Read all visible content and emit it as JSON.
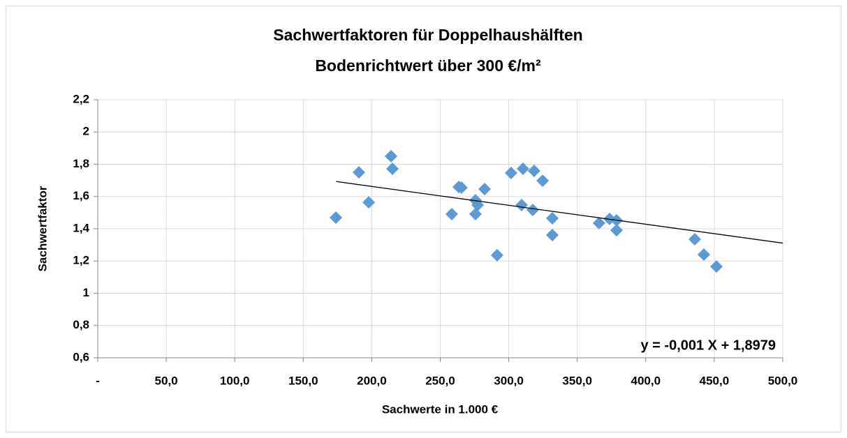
{
  "chart_data": {
    "type": "scatter",
    "title": [
      "Sachwertfaktoren für Doppelhaushälften",
      "Bodenrichtwert über 300 €/m²"
    ],
    "x_label": "Sachwerte in 1.000 €",
    "y_label": "Sachwertfaktor",
    "annotation": "y = -0,001 X + 1,8979",
    "series": [
      {
        "name": "Sachwertfaktor",
        "color": "#5b9bd5",
        "x": [
          173.8,
          190.6,
          197.8,
          214.1,
          215.1,
          258.4,
          263.5,
          265.5,
          275.7,
          277.3,
          275.7,
          282.4,
          291.5,
          301.7,
          310.4,
          309.4,
          318.5,
          317.5,
          324.7,
          331.8,
          331.8,
          365.9,
          373.6,
          378.7,
          378.7,
          435.8,
          442.4,
          451.6
        ],
        "values": [
          1.469,
          1.75,
          1.564,
          1.85,
          1.772,
          1.491,
          1.659,
          1.655,
          1.577,
          1.547,
          1.491,
          1.646,
          1.236,
          1.746,
          1.772,
          1.547,
          1.759,
          1.517,
          1.698,
          1.465,
          1.361,
          1.435,
          1.461,
          1.452,
          1.391,
          1.335,
          1.24,
          1.166
        ]
      }
    ],
    "trendline": {
      "color": "#000000",
      "x": [
        174,
        500
      ],
      "values": [
        1.693,
        1.311
      ]
    },
    "xlim": [
      0,
      500
    ],
    "xticks": [
      {
        "value": 0,
        "label": "-"
      },
      {
        "value": 50,
        "label": "50,0"
      },
      {
        "value": 100,
        "label": "100,0"
      },
      {
        "value": 150,
        "label": "150,0"
      },
      {
        "value": 200,
        "label": "200,0"
      },
      {
        "value": 250,
        "label": "250,0"
      },
      {
        "value": 300,
        "label": "300,0"
      },
      {
        "value": 350,
        "label": "350,0"
      },
      {
        "value": 400,
        "label": "400,0"
      },
      {
        "value": 450,
        "label": "450,0"
      },
      {
        "value": 500,
        "label": "500,0"
      }
    ],
    "ylim": [
      0.6,
      2.2
    ],
    "yticks": [
      {
        "value": 0.6,
        "label": "0,6"
      },
      {
        "value": 0.8,
        "label": "0,8"
      },
      1,
      {
        "value": 1.2,
        "label": "1,2"
      },
      {
        "value": 1.4,
        "label": "1,4"
      },
      {
        "value": 1.6,
        "label": "1,6"
      },
      {
        "value": 1.8,
        "label": "1,8"
      },
      2,
      {
        "value": 2.2,
        "label": "2,2"
      }
    ],
    "grid": true
  }
}
